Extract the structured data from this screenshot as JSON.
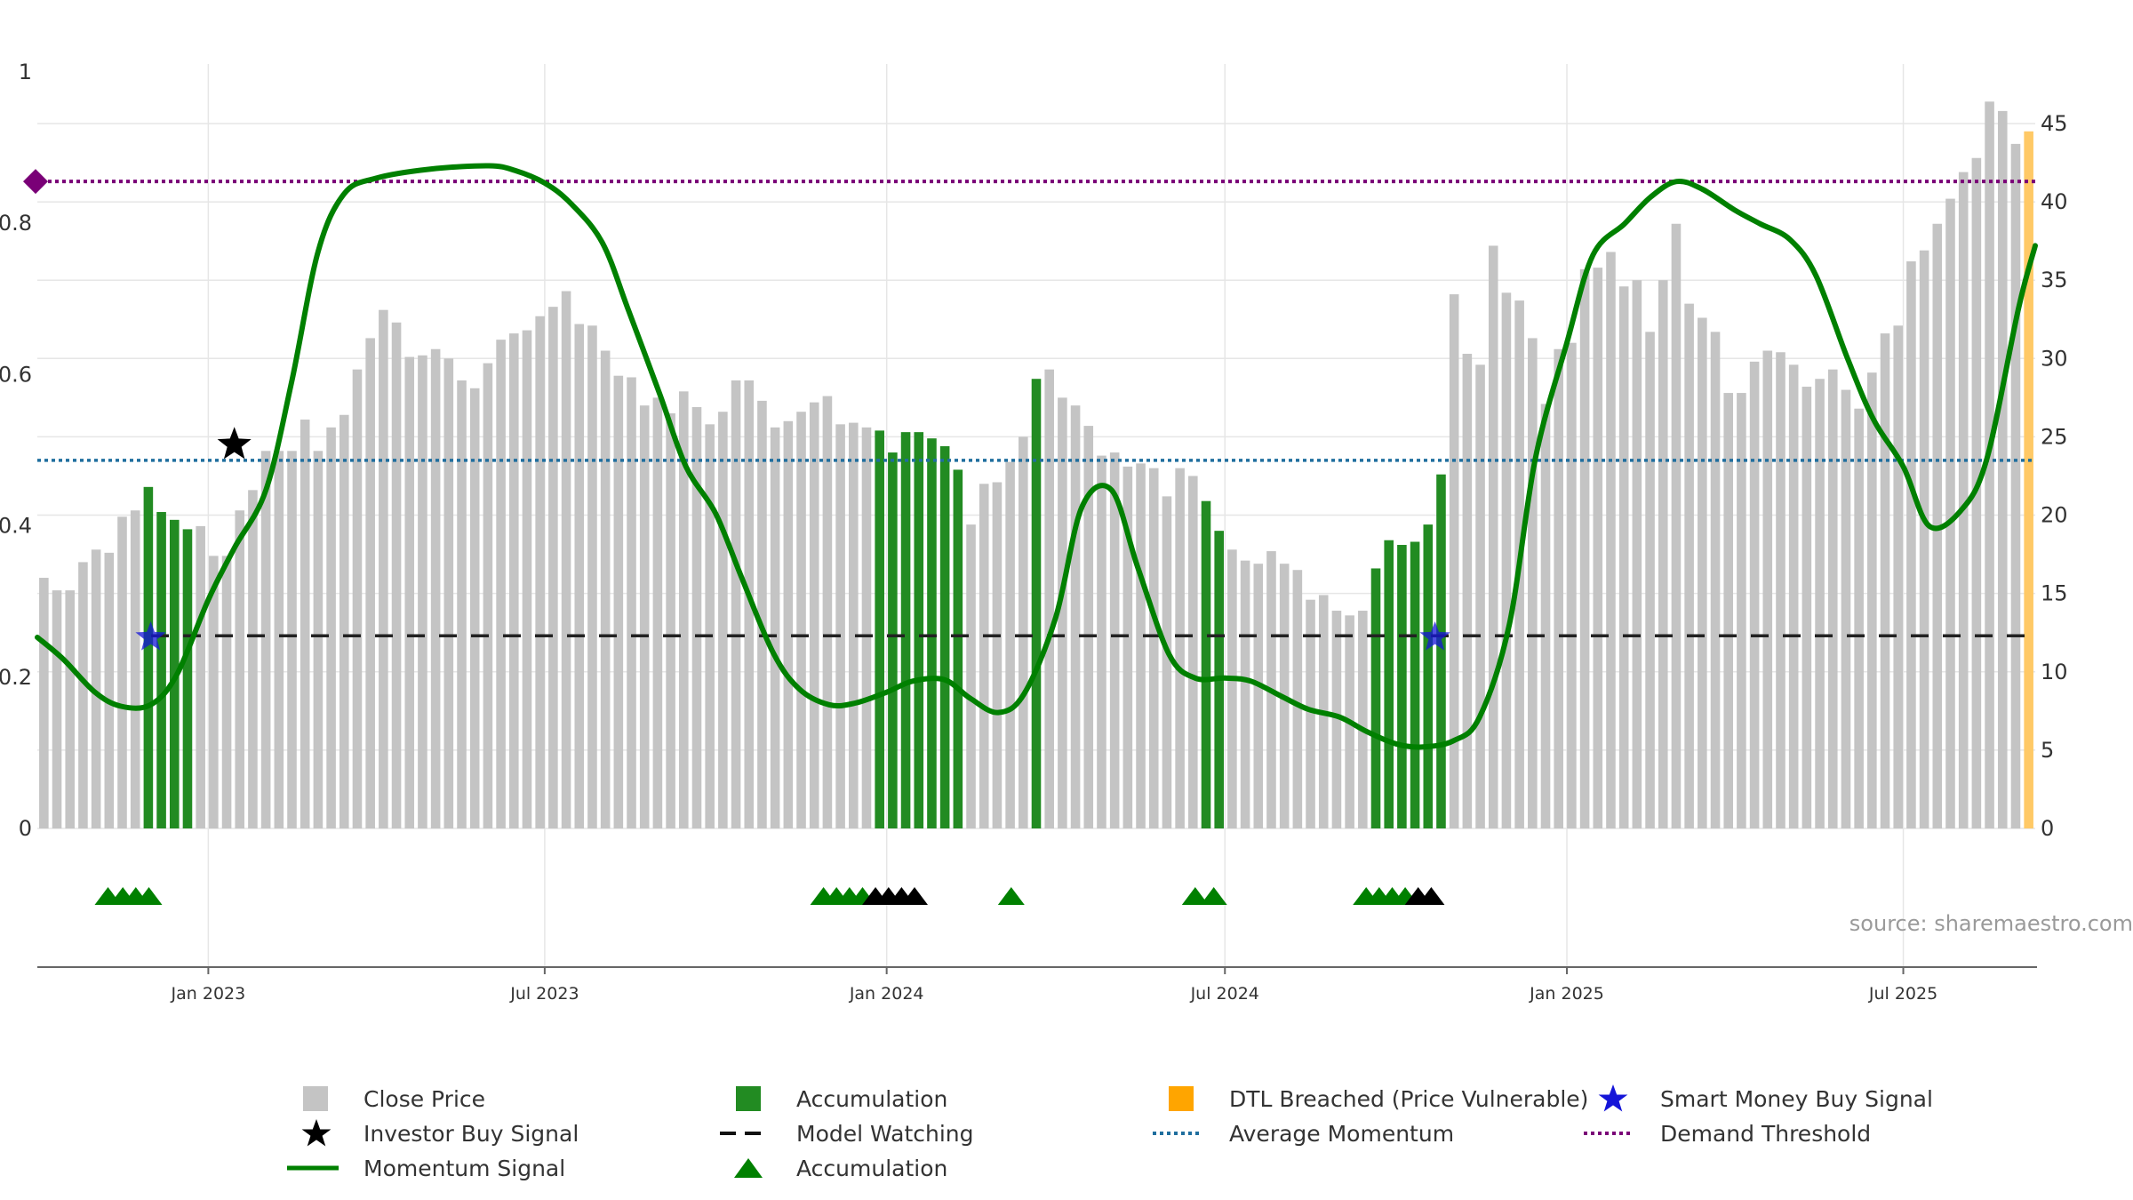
{
  "chart_data": {
    "type": "bar",
    "left_axis": {
      "ticks": [
        0,
        0.2,
        0.4,
        0.6,
        0.8,
        1
      ],
      "labels": [
        "0",
        "0.2",
        "0.4",
        "0.6",
        "0.8",
        "1"
      ],
      "ylim": [
        0,
        1
      ]
    },
    "right_axis": {
      "ticks": [
        0,
        5,
        10,
        15,
        20,
        25,
        30,
        35,
        40,
        45
      ],
      "labels": [
        "0",
        "5",
        "10",
        "15",
        "20",
        "25",
        "30",
        "35",
        "40",
        "45"
      ],
      "ylim": [
        0,
        48.8
      ]
    },
    "x_range": [
      "2022-10-01",
      "2025-09-10"
    ],
    "x_ticks": [
      {
        "date": "2023-01-01",
        "label": "Jan 2023"
      },
      {
        "date": "2023-07-01",
        "label": "Jul 2023"
      },
      {
        "date": "2024-01-01",
        "label": "Jan 2024"
      },
      {
        "date": "2024-07-01",
        "label": "Jul 2024"
      },
      {
        "date": "2025-01-01",
        "label": "Jan 2025"
      },
      {
        "date": "2025-07-01",
        "label": "Jul 2025"
      }
    ],
    "bars": {
      "values": [
        16,
        15.2,
        15.2,
        17,
        17.8,
        17.6,
        19.9,
        20.3,
        21.8,
        20.2,
        19.7,
        19.1,
        19.3,
        17.4,
        17.4,
        20.3,
        21.6,
        24.1,
        24.1,
        24.1,
        26.1,
        24.1,
        25.6,
        26.4,
        29.3,
        31.3,
        33.1,
        32.3,
        30.1,
        30.2,
        30.6,
        30,
        28.6,
        28.1,
        29.7,
        31.2,
        31.6,
        31.8,
        32.7,
        33.3,
        34.3,
        32.2,
        32.1,
        30.5,
        28.9,
        28.8,
        27,
        27.5,
        26.5,
        27.9,
        26.9,
        25.8,
        26.6,
        28.6,
        28.6,
        27.3,
        25.6,
        26,
        26.6,
        27.2,
        27.6,
        25.8,
        25.9,
        25.6,
        25.4,
        24,
        25.3,
        25.3,
        24.9,
        24.4,
        22.9,
        19.4,
        22,
        22.1,
        23.4,
        25,
        28.7,
        29.3,
        27.5,
        27,
        25.7,
        23.8,
        24,
        23.1,
        23.3,
        23,
        21.2,
        23,
        22.5,
        20.9,
        19,
        17.8,
        17.1,
        16.9,
        17.7,
        16.9,
        16.5,
        14.6,
        14.9,
        13.9,
        13.6,
        13.9,
        16.6,
        18.4,
        18.1,
        18.3,
        19.4,
        22.6,
        34.1,
        30.3,
        29.6,
        37.2,
        34.2,
        33.7,
        31.3,
        27.1,
        30.6,
        31,
        35.7,
        35.8,
        36.8,
        34.6,
        35,
        31.7,
        35,
        38.6,
        33.5,
        32.6,
        31.7,
        27.8,
        27.8,
        29.8,
        30.5,
        30.4,
        29.6,
        28.2,
        28.7,
        29.3,
        28,
        26.8,
        29.1,
        31.6,
        32.1,
        36.2,
        36.9,
        38.6,
        40.2,
        41.9,
        42.8,
        46.4,
        45.8,
        43.7,
        44.5
      ],
      "status": [
        "c",
        "c",
        "c",
        "c",
        "c",
        "c",
        "c",
        "c",
        "a",
        "a",
        "a",
        "a",
        "c",
        "c",
        "c",
        "c",
        "c",
        "c",
        "c",
        "c",
        "c",
        "c",
        "c",
        "c",
        "c",
        "c",
        "c",
        "c",
        "c",
        "c",
        "c",
        "c",
        "c",
        "c",
        "c",
        "c",
        "c",
        "c",
        "c",
        "c",
        "c",
        "c",
        "c",
        "c",
        "c",
        "c",
        "c",
        "c",
        "c",
        "c",
        "c",
        "c",
        "c",
        "c",
        "c",
        "c",
        "c",
        "c",
        "c",
        "c",
        "c",
        "c",
        "c",
        "c",
        "a",
        "a",
        "a",
        "a",
        "a",
        "a",
        "a",
        "c",
        "c",
        "c",
        "c",
        "c",
        "a",
        "c",
        "c",
        "c",
        "c",
        "c",
        "c",
        "c",
        "c",
        "c",
        "c",
        "c",
        "c",
        "a",
        "a",
        "c",
        "c",
        "c",
        "c",
        "c",
        "c",
        "c",
        "c",
        "c",
        "c",
        "c",
        "a",
        "a",
        "a",
        "a",
        "a",
        "a",
        "c",
        "c",
        "c",
        "c",
        "c",
        "c",
        "c",
        "c",
        "c",
        "c",
        "c",
        "c",
        "c",
        "c",
        "c",
        "c",
        "c",
        "c",
        "c",
        "c",
        "c",
        "c",
        "c",
        "c",
        "c",
        "c",
        "c",
        "c",
        "c",
        "c",
        "c",
        "c",
        "c",
        "c",
        "c",
        "c",
        "c",
        "c",
        "c",
        "c",
        "c",
        "c",
        "c",
        "c",
        "d",
        "d",
        "d",
        "d",
        "d",
        "d"
      ]
    },
    "momentum": {
      "x": [
        "2022-10-01",
        "2022-10-15",
        "2022-11-01",
        "2022-11-15",
        "2022-12-01",
        "2022-12-15",
        "2023-01-01",
        "2023-01-15",
        "2023-02-01",
        "2023-02-15",
        "2023-03-01",
        "2023-03-15",
        "2023-04-01",
        "2023-05-01",
        "2023-06-01",
        "2023-06-15",
        "2023-07-01",
        "2023-07-15",
        "2023-08-01",
        "2023-08-15",
        "2023-09-01",
        "2023-09-15",
        "2023-10-01",
        "2023-10-15",
        "2023-11-01",
        "2023-11-15",
        "2023-12-01",
        "2023-12-15",
        "2024-01-01",
        "2024-01-15",
        "2024-02-01",
        "2024-02-15",
        "2024-03-01",
        "2024-03-15",
        "2024-04-01",
        "2024-04-15",
        "2024-05-01",
        "2024-05-15",
        "2024-06-01",
        "2024-06-15",
        "2024-07-01",
        "2024-07-15",
        "2024-08-01",
        "2024-08-15",
        "2024-09-01",
        "2024-09-15",
        "2024-10-01",
        "2024-10-15",
        "2024-11-01",
        "2024-11-15",
        "2024-12-01",
        "2024-12-15",
        "2025-01-01",
        "2025-01-15",
        "2025-02-01",
        "2025-02-15",
        "2025-03-01",
        "2025-03-15",
        "2025-04-01",
        "2025-04-15",
        "2025-05-01",
        "2025-05-15",
        "2025-06-01",
        "2025-06-15",
        "2025-07-01",
        "2025-07-15",
        "2025-08-01",
        "2025-08-15",
        "2025-09-01",
        "2025-09-10"
      ],
      "values": [
        12.2,
        10.8,
        8.7,
        7.8,
        7.9,
        9.8,
        14.6,
        17.9,
        21.6,
        28.6,
        36.8,
        40.5,
        41.5,
        42.1,
        42.3,
        42,
        41.2,
        39.9,
        37.4,
        33.1,
        27.7,
        23.1,
        20.1,
        16,
        11.2,
        8.9,
        7.9,
        8,
        8.7,
        9.4,
        9.5,
        8.3,
        7.4,
        8.6,
        13.5,
        20.5,
        21.6,
        16.7,
        11.1,
        9.6,
        9.6,
        9.4,
        8.4,
        7.6,
        7.1,
        6.2,
        5.4,
        5.2,
        5.6,
        7.1,
        13,
        23.6,
        31,
        36.6,
        38.6,
        40.3,
        41.3,
        40.8,
        39.5,
        38.6,
        37.6,
        35.3,
        30,
        26.1,
        23.1,
        19.3,
        20.3,
        23.6,
        33.2,
        37.2
      ]
    },
    "average_momentum": 23.5,
    "demand_threshold": 41.3,
    "model_watching": 12.3,
    "investor_buy_signals": [
      {
        "x": "2023-01-15",
        "y": 24.5
      }
    ],
    "smart_money_buy_signals": [
      {
        "x": "2022-12-01",
        "y": 12.2
      },
      {
        "x": "2024-10-22",
        "y": 12.2
      }
    ],
    "accumulation_markers": [
      {
        "x": "2022-11-08",
        "color": "green"
      },
      {
        "x": "2022-11-16",
        "color": "green"
      },
      {
        "x": "2022-11-23",
        "color": "green"
      },
      {
        "x": "2022-11-30",
        "color": "green"
      },
      {
        "x": "2023-11-28",
        "color": "green"
      },
      {
        "x": "2023-12-05",
        "color": "green"
      },
      {
        "x": "2023-12-12",
        "color": "green"
      },
      {
        "x": "2023-12-19",
        "color": "green"
      },
      {
        "x": "2023-12-26",
        "color": "black"
      },
      {
        "x": "2024-01-02",
        "color": "black"
      },
      {
        "x": "2024-01-09",
        "color": "black"
      },
      {
        "x": "2024-01-16",
        "color": "black"
      },
      {
        "x": "2024-03-08",
        "color": "green"
      },
      {
        "x": "2024-06-15",
        "color": "green"
      },
      {
        "x": "2024-06-25",
        "color": "green"
      },
      {
        "x": "2024-09-15",
        "color": "green"
      },
      {
        "x": "2024-09-22",
        "color": "green"
      },
      {
        "x": "2024-09-29",
        "color": "green"
      },
      {
        "x": "2024-10-06",
        "color": "green"
      },
      {
        "x": "2024-10-13",
        "color": "black"
      },
      {
        "x": "2024-10-20",
        "color": "black"
      }
    ],
    "colors": {
      "close_price": "#c4c4c4",
      "accumulation": "#228b22",
      "dtl_breached": "#ffc966",
      "momentum": "#008000",
      "average_momentum": "#1f6e9e",
      "demand_threshold": "#7a0077",
      "model_watching": "#222222",
      "smart_money": "#1515d8",
      "investor": "#000000",
      "grid": "#e6e6e6"
    },
    "legend": [
      {
        "key": "close",
        "label": "Close Price",
        "icon": "grey-square-icon"
      },
      {
        "key": "accum_bar",
        "label": "Accumulation",
        "icon": "green-square-icon"
      },
      {
        "key": "dtl",
        "label": "DTL Breached (Price Vulnerable)",
        "icon": "orange-square-icon"
      },
      {
        "key": "smart",
        "label": "Smart Money Buy Signal",
        "icon": "blue-star-icon"
      },
      {
        "key": "investor",
        "label": "Investor Buy Signal",
        "icon": "black-star-icon"
      },
      {
        "key": "watching",
        "label": "Model Watching",
        "icon": "dashed-line-icon"
      },
      {
        "key": "avg",
        "label": "Average Momentum",
        "icon": "dotted-line-icon"
      },
      {
        "key": "demand",
        "label": "Demand Threshold",
        "icon": "purple-dotted-line-icon"
      },
      {
        "key": "momentum",
        "label": "Momentum Signal",
        "icon": "green-line-icon"
      },
      {
        "key": "accum_tri",
        "label": "Accumulation",
        "icon": "green-triangle-icon"
      }
    ]
  },
  "source": "source: sharemaestro.com"
}
